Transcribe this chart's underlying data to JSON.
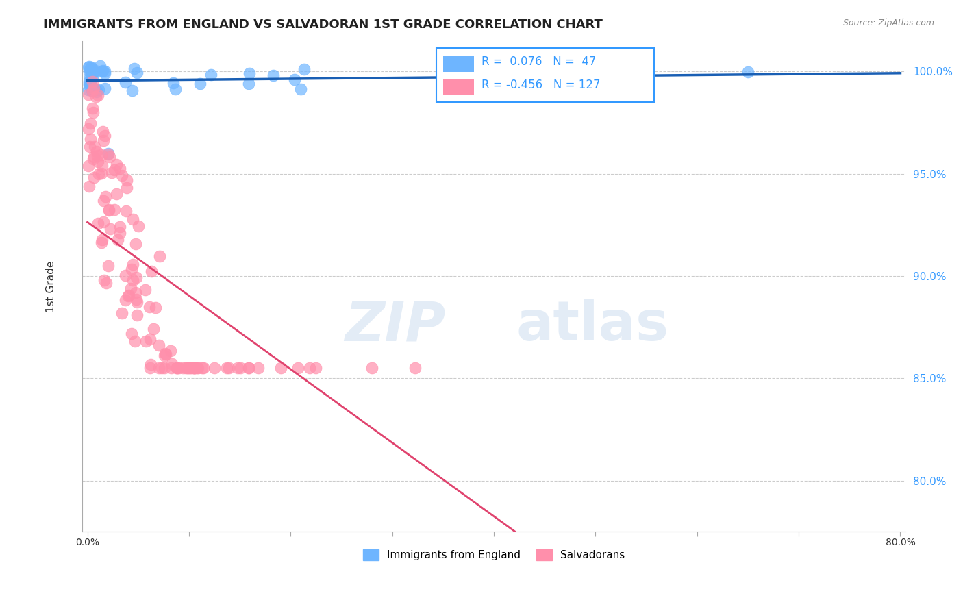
{
  "title": "IMMIGRANTS FROM ENGLAND VS SALVADORAN 1ST GRADE CORRELATION CHART",
  "source": "Source: ZipAtlas.com",
  "ylabel": "1st Grade",
  "england_R": 0.076,
  "england_N": 47,
  "salvadoran_R": -0.456,
  "salvadoran_N": 127,
  "england_color": "#6eb5ff",
  "salvadoran_color": "#ff8fab",
  "england_line_color": "#1a5fb4",
  "salvadoran_line_color": "#e0436e",
  "watermark_zip": "ZIP",
  "watermark_atlas": "atlas",
  "xlim": [
    -0.005,
    0.805
  ],
  "ylim": [
    0.775,
    1.015
  ],
  "ytick_positions": [
    1.0,
    0.95,
    0.9,
    0.85,
    0.8
  ],
  "ytick_labels": [
    "100.0%",
    "95.0%",
    "90.0%",
    "85.0%",
    "80.0%"
  ]
}
